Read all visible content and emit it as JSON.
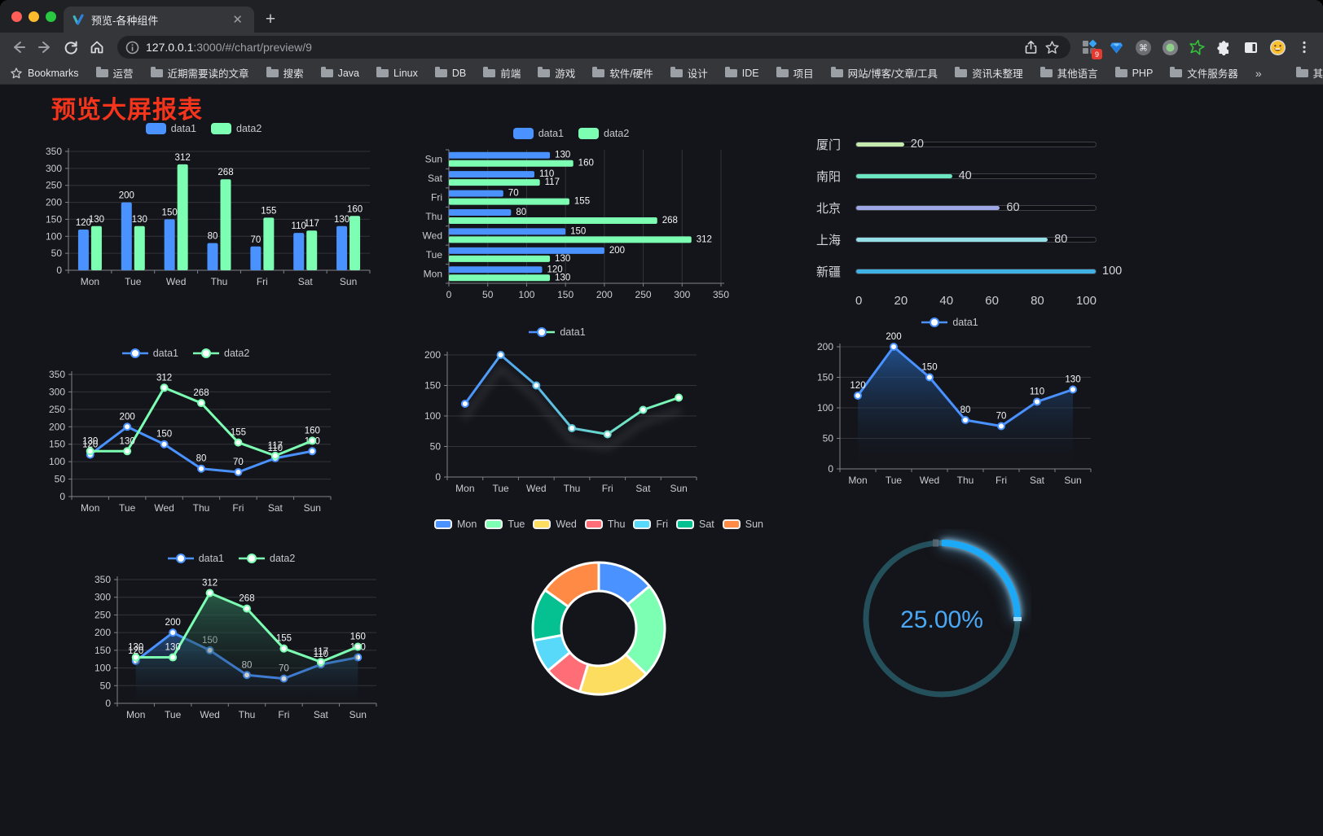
{
  "browser": {
    "tab_title": "预览-各种组件",
    "url_host": "127.0.0.1",
    "url_rest": ":3000/#/chart/preview/9",
    "extension_badge": "9",
    "bookmarks_label": "Bookmarks",
    "bookmarks": [
      "运营",
      "近期需要读的文章",
      "搜索",
      "Java",
      "Linux",
      "DB",
      "前端",
      "游戏",
      "软件/硬件",
      "设计",
      "IDE",
      "项目",
      "网站/博客/文章/工具",
      "资讯未整理",
      "其他语言",
      "PHP",
      "文件服务器"
    ],
    "bookmarks_overflow": "»",
    "other_bookmarks": "其他书签"
  },
  "page": {
    "title": "预览大屏报表",
    "title_color": "#f5341c"
  },
  "chart_data": [
    {
      "id": "bar-vertical",
      "type": "bar",
      "categories": [
        "Mon",
        "Tue",
        "Wed",
        "Thu",
        "Fri",
        "Sat",
        "Sun"
      ],
      "series": [
        {
          "name": "data1",
          "color": "#4992ff",
          "values": [
            120,
            200,
            150,
            80,
            70,
            110,
            130
          ]
        },
        {
          "name": "data2",
          "color": "#7cffb2",
          "values": [
            130,
            130,
            312,
            268,
            155,
            117,
            160
          ]
        }
      ],
      "ylim": [
        0,
        350
      ],
      "ystep": 50,
      "legend_position": "top",
      "grid": true
    },
    {
      "id": "bar-horizontal",
      "type": "bar",
      "orientation": "horizontal",
      "categories": [
        "Mon",
        "Tue",
        "Wed",
        "Thu",
        "Fri",
        "Sat",
        "Sun"
      ],
      "series": [
        {
          "name": "data1",
          "color": "#4992ff",
          "values": [
            120,
            200,
            150,
            80,
            70,
            110,
            130
          ]
        },
        {
          "name": "data2",
          "color": "#7cffb2",
          "values": [
            130,
            130,
            312,
            268,
            155,
            117,
            160
          ]
        }
      ],
      "xlim": [
        0,
        350
      ],
      "xstep": 50,
      "legend_position": "top",
      "grid": true
    },
    {
      "id": "progress-cities",
      "type": "bar",
      "subtype": "progress-list",
      "rows": [
        {
          "label": "厦门",
          "value": 20,
          "color": "#c4ebad"
        },
        {
          "label": "南阳",
          "value": 40,
          "color": "#6be6c1"
        },
        {
          "label": "北京",
          "value": 60,
          "color": "#a0a7e6"
        },
        {
          "label": "上海",
          "value": 80,
          "color": "#96dee8"
        },
        {
          "label": "新疆",
          "value": 100,
          "color": "#3fb1e3"
        }
      ],
      "xlim": [
        0,
        100
      ],
      "xticks": [
        0,
        20,
        40,
        60,
        80,
        100
      ]
    },
    {
      "id": "line-two-series",
      "type": "line",
      "categories": [
        "Mon",
        "Tue",
        "Wed",
        "Thu",
        "Fri",
        "Sat",
        "Sun"
      ],
      "series": [
        {
          "name": "data1",
          "color": "#4992ff",
          "values": [
            120,
            200,
            150,
            80,
            70,
            110,
            130
          ]
        },
        {
          "name": "data2",
          "color": "#7cffb2",
          "values": [
            130,
            130,
            312,
            268,
            155,
            117,
            160
          ]
        }
      ],
      "ylim": [
        0,
        350
      ],
      "ystep": 50,
      "labels": true,
      "legend_position": "top"
    },
    {
      "id": "line-gradient",
      "type": "line",
      "categories": [
        "Mon",
        "Tue",
        "Wed",
        "Thu",
        "Fri",
        "Sat",
        "Sun"
      ],
      "series": [
        {
          "name": "data1",
          "gradient": [
            "#4992ff",
            "#7cffb2"
          ],
          "values": [
            120,
            200,
            150,
            80,
            70,
            110,
            130
          ]
        }
      ],
      "ylim": [
        0,
        200
      ],
      "ystep": 50,
      "labels": false,
      "shadow": true,
      "legend_position": "top"
    },
    {
      "id": "area-single",
      "type": "area",
      "categories": [
        "Mon",
        "Tue",
        "Wed",
        "Thu",
        "Fri",
        "Sat",
        "Sun"
      ],
      "series": [
        {
          "name": "data1",
          "color": "#4992ff",
          "values": [
            120,
            200,
            150,
            80,
            70,
            110,
            130
          ],
          "area_gradient": [
            "rgba(36,90,158,0.85)",
            "rgba(20,24,32,0.02)"
          ]
        }
      ],
      "ylim": [
        0,
        200
      ],
      "ystep": 50,
      "labels": true,
      "legend_position": "top"
    },
    {
      "id": "area-two-series",
      "type": "area",
      "categories": [
        "Mon",
        "Tue",
        "Wed",
        "Thu",
        "Fri",
        "Sat",
        "Sun"
      ],
      "series": [
        {
          "name": "data1",
          "color": "#4992ff",
          "values": [
            120,
            200,
            150,
            80,
            70,
            110,
            130
          ],
          "area_gradient": [
            "rgba(41,92,156,0.75)",
            "rgba(20,24,32,0.03)"
          ]
        },
        {
          "name": "data2",
          "color": "#7cffb2",
          "values": [
            130,
            130,
            312,
            268,
            155,
            117,
            160
          ],
          "area_gradient": [
            "rgba(45,108,82,0.8)",
            "rgba(20,24,32,0.03)"
          ]
        }
      ],
      "ylim": [
        0,
        350
      ],
      "ystep": 50,
      "labels": true,
      "legend_position": "top"
    },
    {
      "id": "donut-week",
      "type": "pie",
      "subtype": "donut",
      "labels": [
        "Mon",
        "Tue",
        "Wed",
        "Thu",
        "Fri",
        "Sat",
        "Sun"
      ],
      "values": [
        120,
        200,
        150,
        80,
        70,
        110,
        130
      ],
      "colors": [
        "#4992ff",
        "#7cffb2",
        "#fddd60",
        "#ff6e76",
        "#58d9f9",
        "#05c091",
        "#ff8a45"
      ],
      "border_color": "#ffffff",
      "legend_position": "top"
    },
    {
      "id": "gauge-percent",
      "type": "gauge",
      "value": 25,
      "display": "25.00%",
      "color": "#1ba9f8",
      "track_color": "#24505c",
      "text_color": "#4aa8f4"
    }
  ]
}
